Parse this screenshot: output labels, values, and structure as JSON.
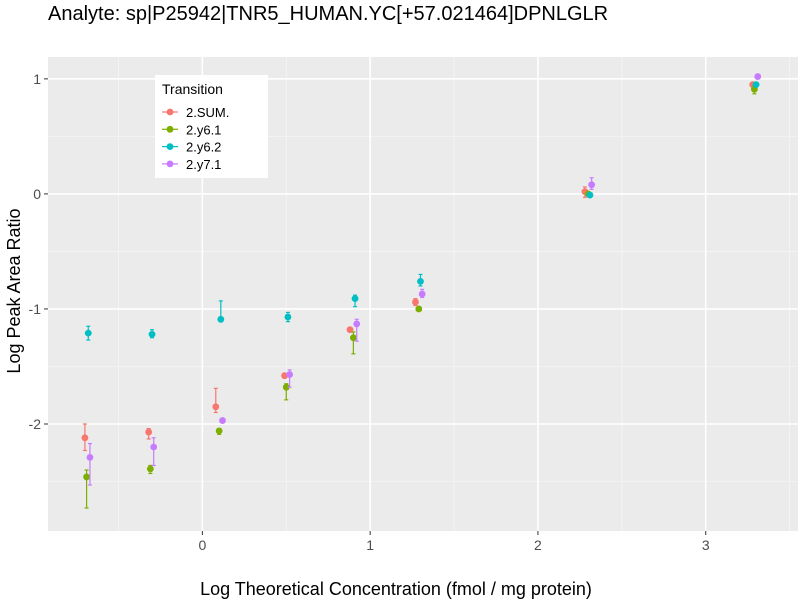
{
  "chart_data": {
    "type": "scatter",
    "title": "Analyte: sp|P25942|TNR5_HUMAN.YC[+57.021464]DPNLGLR",
    "xlabel": "Log Theoretical Concentration (fmol / mg protein)",
    "ylabel": "Log Peak Area Ratio",
    "xlim": [
      -0.92,
      3.55
    ],
    "ylim": [
      -2.93,
      1.19
    ],
    "x_ticks": [
      0,
      1,
      2,
      3
    ],
    "y_ticks": [
      1,
      0,
      -1,
      -2
    ],
    "x_tick_labels": [
      "0",
      "1",
      "2",
      "3"
    ],
    "y_tick_labels": [
      "1",
      "0",
      "-1",
      "-2"
    ],
    "grid": true,
    "legend": {
      "title": "Transition",
      "position": "top-left"
    },
    "series": [
      {
        "name": "2.SUM.",
        "color": "#F8766D",
        "points": [
          {
            "x": -0.7,
            "y": -2.12,
            "lo": -2.23,
            "hi": -2.0
          },
          {
            "x": -0.32,
            "y": -2.07,
            "lo": -2.13,
            "hi": -2.04
          },
          {
            "x": 0.08,
            "y": -1.85,
            "lo": -1.9,
            "hi": -1.69
          },
          {
            "x": 0.49,
            "y": -1.58
          },
          {
            "x": 0.88,
            "y": -1.18
          },
          {
            "x": 1.27,
            "y": -0.94,
            "lo": -0.97,
            "hi": -0.91
          },
          {
            "x": 2.28,
            "y": 0.02,
            "lo": -0.03,
            "hi": 0.06
          },
          {
            "x": 3.28,
            "y": 0.95
          }
        ]
      },
      {
        "name": "2.y6.1",
        "color": "#7CAE00",
        "points": [
          {
            "x": -0.69,
            "y": -2.46,
            "lo": -2.73,
            "hi": -2.4
          },
          {
            "x": -0.31,
            "y": -2.39,
            "lo": -2.43,
            "hi": -2.36
          },
          {
            "x": 0.1,
            "y": -2.06,
            "lo": -2.09,
            "hi": -2.04
          },
          {
            "x": 0.5,
            "y": -1.68,
            "lo": -1.79,
            "hi": -1.65
          },
          {
            "x": 0.9,
            "y": -1.25,
            "lo": -1.39,
            "hi": -1.2
          },
          {
            "x": 1.29,
            "y": -1.0
          },
          {
            "x": 2.3,
            "y": 0.0
          },
          {
            "x": 3.29,
            "y": 0.91,
            "lo": 0.87,
            "hi": 0.94
          }
        ]
      },
      {
        "name": "2.y6.2",
        "color": "#00BFC4",
        "points": [
          {
            "x": -0.68,
            "y": -1.21,
            "lo": -1.27,
            "hi": -1.15
          },
          {
            "x": -0.3,
            "y": -1.22,
            "lo": -1.25,
            "hi": -1.18
          },
          {
            "x": 0.11,
            "y": -1.09,
            "lo": -1.11,
            "hi": -0.93
          },
          {
            "x": 0.51,
            "y": -1.07,
            "lo": -1.11,
            "hi": -1.03
          },
          {
            "x": 0.91,
            "y": -0.91,
            "lo": -0.98,
            "hi": -0.88
          },
          {
            "x": 1.3,
            "y": -0.76,
            "lo": -0.8,
            "hi": -0.7
          },
          {
            "x": 2.31,
            "y": -0.01
          },
          {
            "x": 3.3,
            "y": 0.95
          }
        ]
      },
      {
        "name": "2.y7.1",
        "color": "#C77CFF",
        "points": [
          {
            "x": -0.67,
            "y": -2.29,
            "lo": -2.53,
            "hi": -2.17
          },
          {
            "x": -0.29,
            "y": -2.2,
            "lo": -2.36,
            "hi": -2.12
          },
          {
            "x": 0.12,
            "y": -1.97
          },
          {
            "x": 0.52,
            "y": -1.57,
            "lo": -1.68,
            "hi": -1.53
          },
          {
            "x": 0.92,
            "y": -1.13,
            "lo": -1.28,
            "hi": -1.09
          },
          {
            "x": 1.31,
            "y": -0.87,
            "lo": -0.9,
            "hi": -0.83
          },
          {
            "x": 2.32,
            "y": 0.08,
            "lo": 0.04,
            "hi": 0.14
          },
          {
            "x": 3.31,
            "y": 1.02
          }
        ]
      }
    ]
  }
}
